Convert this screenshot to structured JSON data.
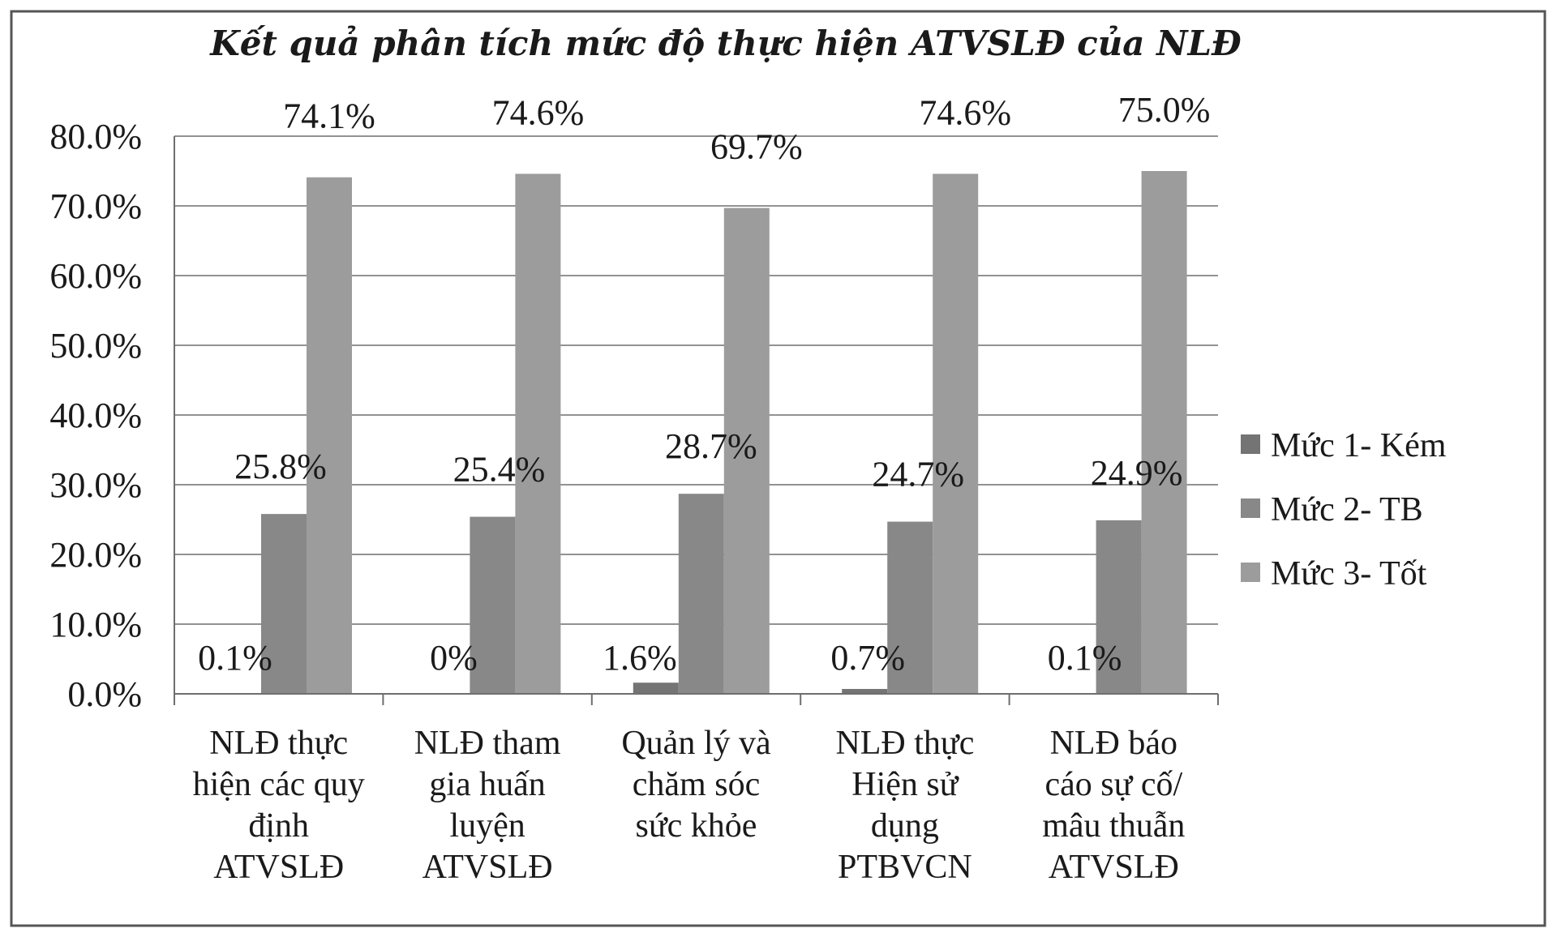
{
  "chart_data": {
    "type": "bar",
    "title": "Kết quả phân tích mức độ thực hiện ATVSLĐ của NLĐ",
    "xlabel": "",
    "ylabel": "",
    "ylim": [
      0,
      80
    ],
    "yticks": [
      "0.0%",
      "10.0%",
      "20.0%",
      "30.0%",
      "40.0%",
      "50.0%",
      "60.0%",
      "70.0%",
      "80.0%"
    ],
    "grid": true,
    "legend_position": "right",
    "categories": [
      [
        "NLĐ thực",
        "hiện các quy",
        "định",
        "ATVSLĐ"
      ],
      [
        "NLĐ tham",
        "gia huấn",
        "luyện",
        "ATVSLĐ"
      ],
      [
        "Quản lý và",
        "chăm sóc",
        "sức khỏe"
      ],
      [
        "NLĐ thực",
        "Hiện sử",
        "dụng",
        "PTBVCN"
      ],
      [
        "NLĐ báo",
        "cáo sự cố/",
        "mâu thuẫn",
        "ATVSLĐ"
      ]
    ],
    "series": [
      {
        "name": "Mức 1- Kém",
        "color": "#747474",
        "values": [
          0.1,
          0,
          1.6,
          0.7,
          0.1
        ],
        "labels": [
          "0.1%",
          "0%",
          "1.6%",
          "0.7%",
          "0.1%"
        ]
      },
      {
        "name": "Mức 2- TB",
        "color": "#888888",
        "values": [
          25.8,
          25.4,
          28.7,
          24.7,
          24.9
        ],
        "labels": [
          "25.8%",
          "25.4%",
          "28.7%",
          "24.7%",
          "24.9%"
        ]
      },
      {
        "name": "Mức 3- Tốt",
        "color": "#9c9c9c",
        "values": [
          74.1,
          74.6,
          69.7,
          74.6,
          75.0
        ],
        "labels": [
          "74.1%",
          "74.6%",
          "69.7%",
          "74.6%",
          "75.0%"
        ]
      }
    ]
  }
}
